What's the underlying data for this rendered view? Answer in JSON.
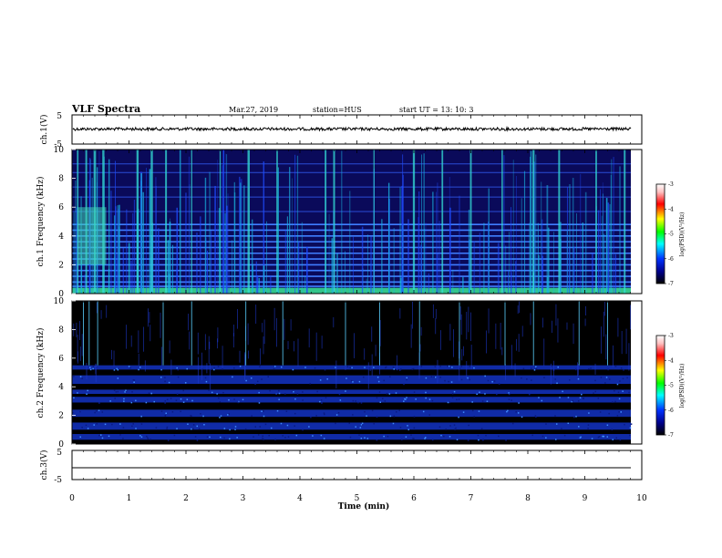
{
  "header": {
    "title": "VLF Spectra",
    "date": "Mar.27, 2019",
    "station": "station=HUS",
    "start_time": "start  UT =   13: 10: 3"
  },
  "chart_data": [
    {
      "id": "ch1-voltage",
      "type": "line",
      "ylabel": "ch.1(V)",
      "ylim": [
        -5,
        5
      ],
      "yticks": [
        "5",
        "-5"
      ],
      "xlim": [
        0,
        10
      ],
      "baseline_value": 0,
      "series_color": "#000000"
    },
    {
      "id": "ch1-spectrogram",
      "type": "heatmap",
      "ylabel": "ch.1 Frequency (kHz)",
      "ylim": [
        0,
        10
      ],
      "yticks": [
        "0",
        "2",
        "4",
        "6",
        "8",
        "10"
      ],
      "xlim": [
        0,
        10
      ],
      "colorbar": {
        "label": "log(PSD)(V²/Hz)",
        "range": [
          -7,
          -3
        ],
        "ticks": [
          "-3",
          "-4",
          "-5",
          "-6",
          "-7"
        ],
        "colormap": [
          "#000000",
          "#00008b",
          "#0033ff",
          "#00ffff",
          "#00ff00",
          "#ffff00",
          "#ff0000",
          "#ffc0c0",
          "#ffffff"
        ]
      },
      "features": {
        "hum_lines_khz": [
          0.5,
          0.8,
          1.2,
          1.6,
          2.0,
          2.4,
          2.8,
          3.2,
          3.6,
          4.0,
          4.4,
          4.8,
          5.7,
          6.7,
          7.4,
          8.4,
          9.0
        ],
        "bright_burst_minutes": [
          0.1,
          0.25,
          0.4,
          0.55,
          1.15,
          1.4,
          1.65,
          2.1,
          2.6,
          3.1,
          3.6,
          4.45,
          4.6,
          5.3,
          6.0,
          6.5,
          7.0,
          7.55,
          8.1,
          8.55,
          9.2,
          9.7
        ],
        "lowband_green_khz": [
          0.0,
          0.4
        ]
      }
    },
    {
      "id": "ch2-spectrogram",
      "type": "heatmap",
      "ylabel": "ch.2 Frequency (kHz)",
      "ylim": [
        0,
        10
      ],
      "yticks": [
        "0",
        "2",
        "4",
        "6",
        "8",
        "10"
      ],
      "xlim": [
        0,
        10
      ],
      "colorbar": {
        "label": "log(PSD)(V²/Hz)",
        "range": [
          -7,
          -3
        ],
        "ticks": [
          "-3",
          "-4",
          "-5",
          "-6",
          "-7"
        ]
      },
      "features": {
        "band_khz": [
          [
            0.3,
            0.7
          ],
          [
            1.0,
            1.5
          ],
          [
            1.9,
            2.4
          ],
          [
            2.9,
            3.3
          ],
          [
            3.5,
            3.8
          ],
          [
            4.2,
            4.8
          ],
          [
            5.2,
            5.5
          ]
        ],
        "burst_minutes": [
          0.2,
          0.3,
          0.45,
          1.6,
          2.1,
          3.05,
          3.7,
          4.8,
          5.4,
          6.1,
          6.8,
          7.6,
          8.1,
          8.9,
          9.4
        ]
      }
    },
    {
      "id": "ch3-voltage",
      "type": "line",
      "ylabel": "ch.3(V)",
      "ylim": [
        -5,
        5
      ],
      "yticks": [
        "5",
        "-5"
      ],
      "xlim": [
        0,
        10
      ],
      "baseline_value": 0,
      "series_color": "#000000"
    }
  ],
  "xaxis": {
    "label": "Time (min)",
    "ticks": [
      "0",
      "1",
      "2",
      "3",
      "4",
      "5",
      "6",
      "7",
      "8",
      "9",
      "10"
    ]
  }
}
